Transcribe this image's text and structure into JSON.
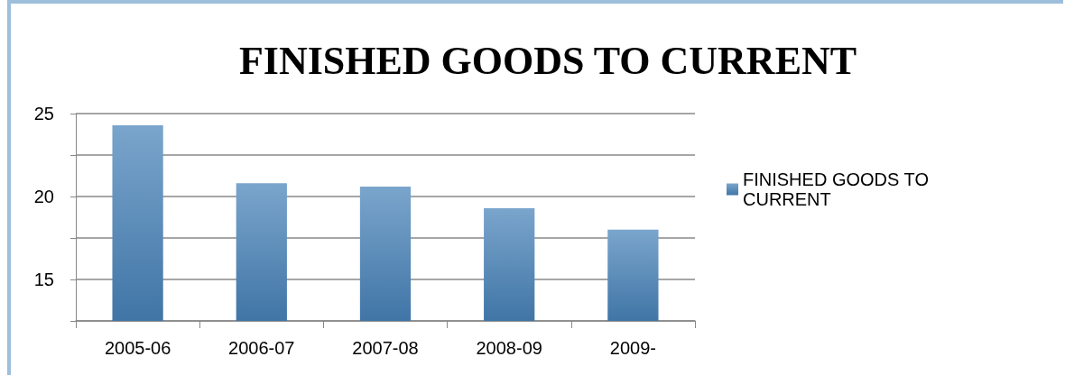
{
  "chart_data": {
    "type": "bar",
    "title": "FINISHED GOODS TO CURRENT",
    "categories": [
      "2005-06",
      "2006-07",
      "2007-08",
      "2008-09",
      "2009-"
    ],
    "series": [
      {
        "name": "FINISHED GOODS TO CURRENT",
        "color": "#7aa5cc",
        "values": [
          24.3,
          20.8,
          20.6,
          19.3,
          18.0
        ]
      }
    ],
    "ylim": [
      12.5,
      25
    ],
    "yticks": [
      {
        "value": 12.5,
        "label": null
      },
      15,
      {
        "value": 17.5,
        "label": null
      },
      20,
      {
        "value": 22.5,
        "label": null
      },
      25
    ],
    "grid": "y",
    "legend": "right"
  }
}
